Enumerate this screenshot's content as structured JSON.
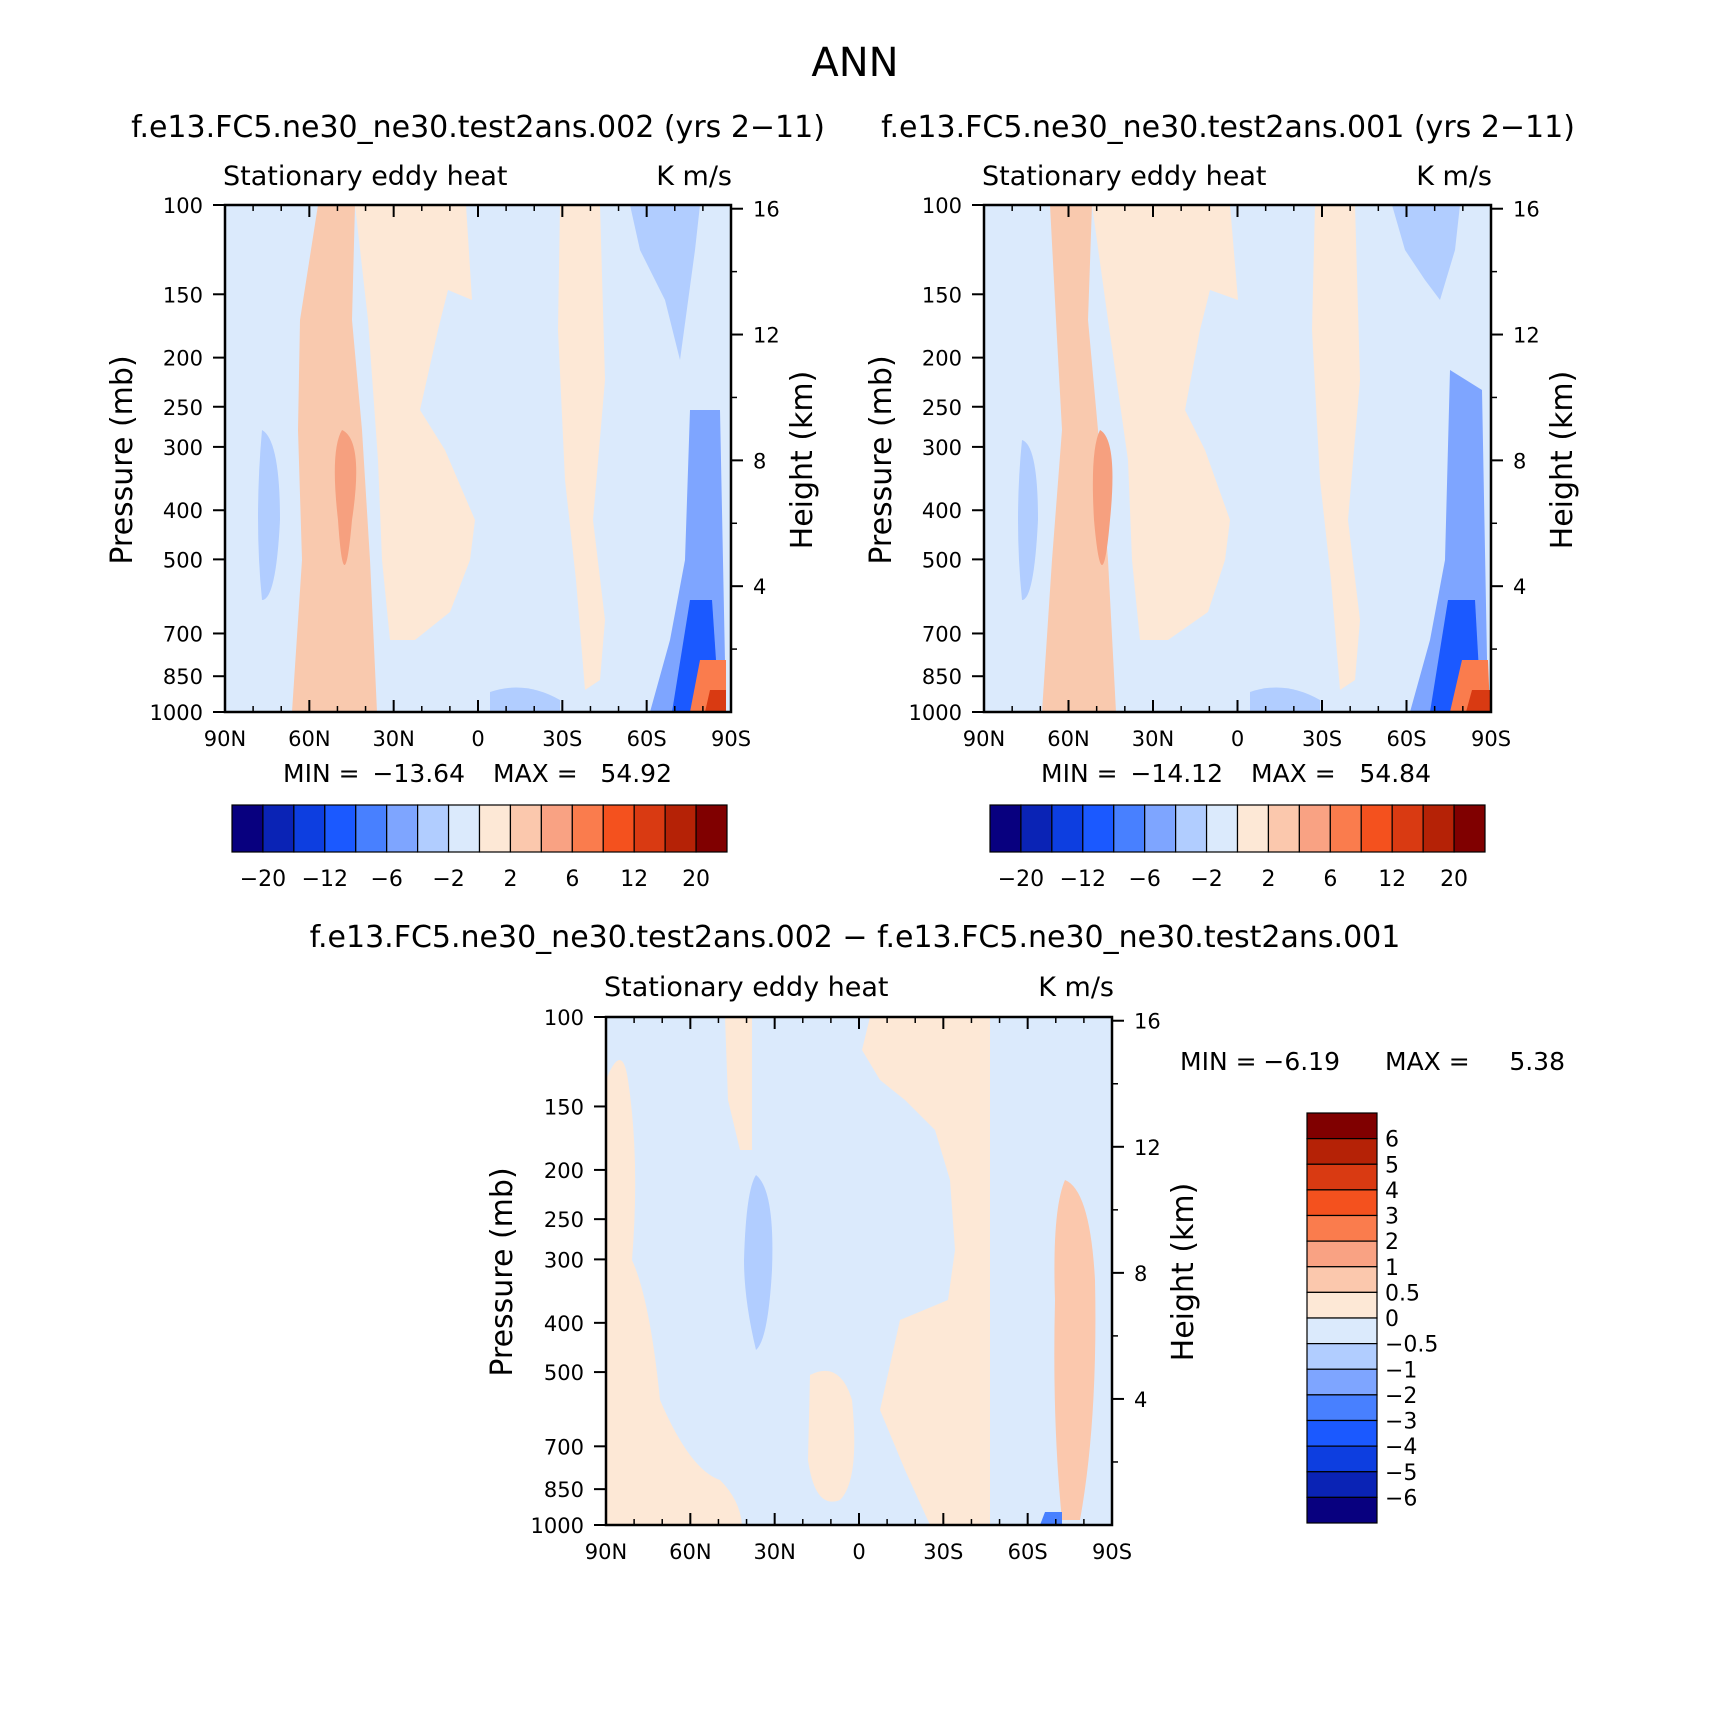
{
  "figure": {
    "season": "ANN"
  },
  "chart_data": [
    {
      "type": "heatmap",
      "title": "f.e13.FC5.ne30_ne30.test2ans.002 (yrs 2−11)",
      "variable": "Stationary eddy heat",
      "units": "K m/s",
      "xlabel": "",
      "ylabel": "Pressure (mb)",
      "ylabel_right": "Height (km)",
      "x_ticks": [
        "90N",
        "60N",
        "30N",
        "0",
        "30S",
        "60S",
        "90S"
      ],
      "x_range": [
        90,
        -90
      ],
      "y_ticks": [
        "100",
        "150",
        "200",
        "250",
        "300",
        "400",
        "500",
        "700",
        "850",
        "1000"
      ],
      "y_range": [
        1000,
        100
      ],
      "y_scale": "log",
      "y2_ticks": [
        "16",
        "12",
        "8",
        "4"
      ],
      "stats": {
        "min_label": "MIN =",
        "min": "−13.64",
        "max_label": "MAX =",
        "max": "54.92"
      },
      "colorbar": {
        "orientation": "horizontal",
        "labels": [
          "−20",
          "−12",
          "−6",
          "−2",
          "2",
          "6",
          "12",
          "20"
        ],
        "levels": [
          -20,
          -16,
          -12,
          -8,
          -6,
          -4,
          -2,
          0,
          2,
          4,
          6,
          8,
          12,
          16,
          20
        ],
        "colors": [
          "#08007f",
          "#0a23b5",
          "#0d3ee0",
          "#1b59ff",
          "#4880ff",
          "#7ea5ff",
          "#b1cdff",
          "#dbeafc",
          "#fde8d6",
          "#fbc8ad",
          "#f9a283",
          "#fa7c4d",
          "#f4511e",
          "#d93a12",
          "#b52206",
          "#800000"
        ]
      },
      "features": [
        {
          "kind": "positive band",
          "lat_from": 67,
          "lat_to": 45,
          "p_top": 100,
          "p_bottom": 1000,
          "level": 2
        },
        {
          "kind": "positive core",
          "lat_from": 55,
          "lat_to": 50,
          "p_top": 300,
          "p_bottom": 550,
          "level": 4
        },
        {
          "kind": "positive region",
          "lat_from": 42,
          "lat_to": 10,
          "p_top": 100,
          "p_bottom": 1000,
          "level": 0
        },
        {
          "kind": "positive band",
          "lat_from": -30,
          "lat_to": -45,
          "p_top": 100,
          "p_bottom": 950,
          "level": 0
        },
        {
          "kind": "negative region",
          "lat_from": -55,
          "lat_to": -70,
          "p_top": 100,
          "p_bottom": 200,
          "level": -2
        },
        {
          "kind": "negative region",
          "lat_from": 80,
          "lat_to": 75,
          "p_top": 300,
          "p_bottom": 600,
          "level": -2
        },
        {
          "kind": "negative core",
          "lat_from": -70,
          "lat_to": -85,
          "p_top": 250,
          "p_bottom": 1000,
          "level": -6
        },
        {
          "kind": "positive surface maximum",
          "lat_from": -80,
          "lat_to": -88,
          "p_top": 800,
          "p_bottom": 1000,
          "level": 12
        }
      ]
    },
    {
      "type": "heatmap",
      "title": "f.e13.FC5.ne30_ne30.test2ans.001 (yrs 2−11)",
      "variable": "Stationary eddy heat",
      "units": "K m/s",
      "xlabel": "",
      "ylabel": "Pressure (mb)",
      "ylabel_right": "Height (km)",
      "x_ticks": [
        "90N",
        "60N",
        "30N",
        "0",
        "30S",
        "60S",
        "90S"
      ],
      "x_range": [
        90,
        -90
      ],
      "y_ticks": [
        "100",
        "150",
        "200",
        "250",
        "300",
        "400",
        "500",
        "700",
        "850",
        "1000"
      ],
      "y_range": [
        1000,
        100
      ],
      "y_scale": "log",
      "y2_ticks": [
        "16",
        "12",
        "8",
        "4"
      ],
      "stats": {
        "min_label": "MIN =",
        "min": "−14.12",
        "max_label": "MAX =",
        "max": "54.84"
      },
      "colorbar": {
        "orientation": "horizontal",
        "labels": [
          "−20",
          "−12",
          "−6",
          "−2",
          "2",
          "6",
          "12",
          "20"
        ],
        "levels": [
          -20,
          -16,
          -12,
          -8,
          -6,
          -4,
          -2,
          0,
          2,
          4,
          6,
          8,
          12,
          16,
          20
        ],
        "colors": [
          "#08007f",
          "#0a23b5",
          "#0d3ee0",
          "#1b59ff",
          "#4880ff",
          "#7ea5ff",
          "#b1cdff",
          "#dbeafc",
          "#fde8d6",
          "#fbc8ad",
          "#f9a283",
          "#fa7c4d",
          "#f4511e",
          "#d93a12",
          "#b52206",
          "#800000"
        ]
      },
      "features": [
        {
          "kind": "positive band",
          "lat_from": 68,
          "lat_to": 45,
          "p_top": 100,
          "p_bottom": 1000,
          "level": 2
        },
        {
          "kind": "positive core",
          "lat_from": 55,
          "lat_to": 50,
          "p_top": 300,
          "p_bottom": 550,
          "level": 4
        },
        {
          "kind": "positive region",
          "lat_from": 40,
          "lat_to": 5,
          "p_top": 100,
          "p_bottom": 1000,
          "level": 0
        },
        {
          "kind": "positive band",
          "lat_from": -30,
          "lat_to": -42,
          "p_top": 100,
          "p_bottom": 950,
          "level": 0
        },
        {
          "kind": "negative region",
          "lat_from": -55,
          "lat_to": -68,
          "p_top": 100,
          "p_bottom": 160,
          "level": -2
        },
        {
          "kind": "negative region",
          "lat_from": 80,
          "lat_to": 75,
          "p_top": 300,
          "p_bottom": 600,
          "level": -2
        },
        {
          "kind": "negative core",
          "lat_from": -70,
          "lat_to": -87,
          "p_top": 250,
          "p_bottom": 1000,
          "level": -6
        },
        {
          "kind": "positive surface maximum",
          "lat_from": -80,
          "lat_to": -88,
          "p_top": 800,
          "p_bottom": 1000,
          "level": 12
        }
      ]
    },
    {
      "type": "heatmap",
      "title": "f.e13.FC5.ne30_ne30.test2ans.002 − f.e13.FC5.ne30_ne30.test2ans.001",
      "variable": "Stationary eddy heat",
      "units": "K m/s",
      "xlabel": "",
      "ylabel": "Pressure (mb)",
      "ylabel_right": "Height (km)",
      "x_ticks": [
        "90N",
        "60N",
        "30N",
        "0",
        "30S",
        "60S",
        "90S"
      ],
      "x_range": [
        90,
        -90
      ],
      "y_ticks": [
        "100",
        "150",
        "200",
        "250",
        "300",
        "400",
        "500",
        "700",
        "850",
        "1000"
      ],
      "y_range": [
        1000,
        100
      ],
      "y_scale": "log",
      "y2_ticks": [
        "16",
        "12",
        "8",
        "4"
      ],
      "stats": {
        "min_label": "MIN =",
        "min": "−6.19",
        "max_label": "MAX =",
        "max": "5.38"
      },
      "colorbar": {
        "orientation": "vertical",
        "labels": [
          "6",
          "5",
          "4",
          "3",
          "2",
          "1",
          "0.5",
          "0",
          "−0.5",
          "−1",
          "−2",
          "−3",
          "−4",
          "−5",
          "−6"
        ],
        "levels": [
          6,
          5,
          4,
          3,
          2,
          1,
          0.5,
          0,
          -0.5,
          -1,
          -2,
          -3,
          -4,
          -5,
          -6
        ],
        "colors": [
          "#800000",
          "#b52206",
          "#d93a12",
          "#f4511e",
          "#fa7c4d",
          "#f9a283",
          "#fbc8ad",
          "#fde8d6",
          "#dbeafc",
          "#b1cdff",
          "#7ea5ff",
          "#4880ff",
          "#1b59ff",
          "#0d3ee0",
          "#0a23b5",
          "#08007f"
        ]
      },
      "features": [
        {
          "kind": "positive band",
          "lat_from": 85,
          "lat_to": 75,
          "p_top": 130,
          "p_bottom": 1000,
          "level": 0
        },
        {
          "kind": "positive band",
          "lat_from": 50,
          "lat_to": 42,
          "p_top": 100,
          "p_bottom": 280,
          "level": 0
        },
        {
          "kind": "negative core",
          "lat_from": 38,
          "lat_to": 30,
          "p_top": 230,
          "p_bottom": 480,
          "level": -0.5
        },
        {
          "kind": "positive region",
          "lat_from": 8,
          "lat_to": -45,
          "p_top": 100,
          "p_bottom": 1000,
          "level": 0
        },
        {
          "kind": "positive region",
          "lat_from": 20,
          "lat_to": 5,
          "p_top": 550,
          "p_bottom": 1000,
          "level": 0
        },
        {
          "kind": "positive band",
          "lat_from": -75,
          "lat_to": -85,
          "p_top": 200,
          "p_bottom": 1000,
          "level": 0.5
        },
        {
          "kind": "negative spot",
          "lat_from": -65,
          "lat_to": -75,
          "p_top": 980,
          "p_bottom": 1000,
          "level": -3
        }
      ]
    }
  ]
}
